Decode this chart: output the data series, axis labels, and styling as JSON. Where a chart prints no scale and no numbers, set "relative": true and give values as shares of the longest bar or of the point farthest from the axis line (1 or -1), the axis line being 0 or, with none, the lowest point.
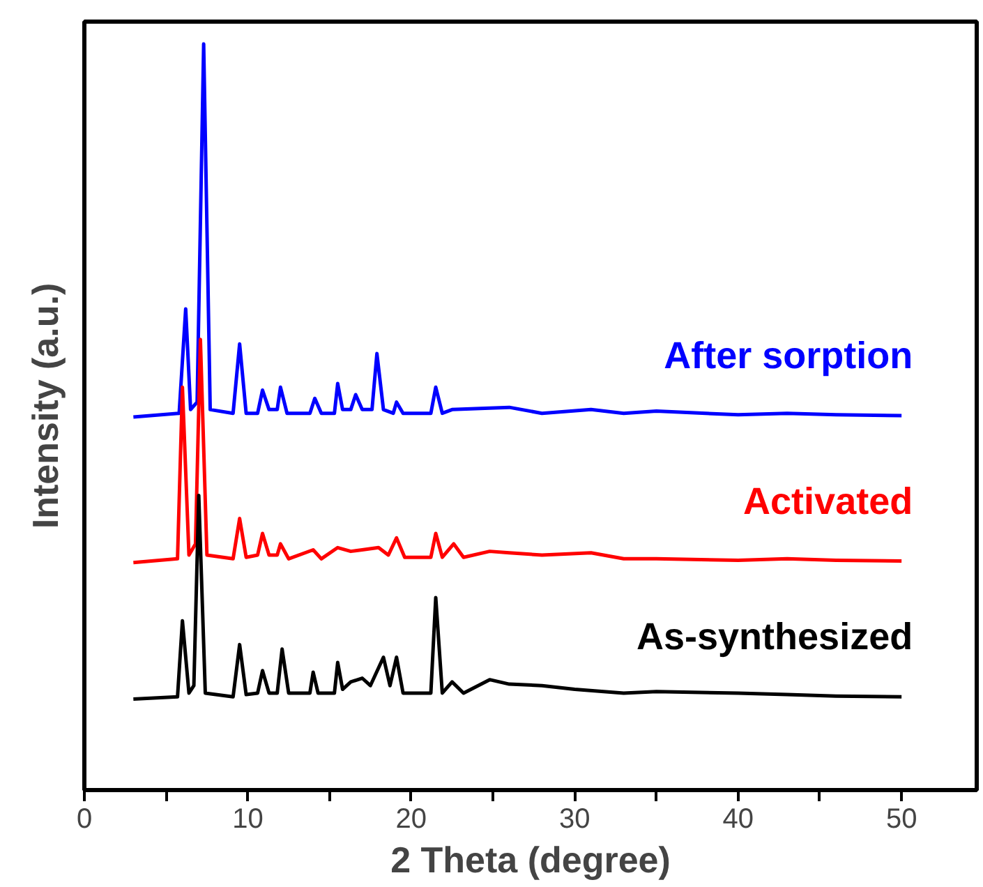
{
  "chart_data": {
    "type": "line",
    "relative": true,
    "xlabel": "2 Theta (degree)",
    "ylabel": "Intensity (a.u.)",
    "xlim": [
      0,
      54.6
    ],
    "xticks": [
      0,
      {
        "value": 5,
        "label": null
      },
      10,
      {
        "value": 15,
        "label": null
      },
      20,
      {
        "value": 25,
        "label": null
      },
      30,
      {
        "value": 35,
        "label": null
      },
      40,
      {
        "value": 45,
        "label": null
      },
      50
    ],
    "grid": false,
    "legend": false,
    "marker": "none",
    "line_style": "solid",
    "series": [
      {
        "name": "After sorption",
        "color": "#0000ff",
        "x": [
          3,
          5.8,
          6.2,
          6.5,
          6.9,
          7.3,
          7.7,
          9.1,
          9.5,
          9.9,
          10.6,
          10.9,
          11.3,
          11.8,
          12.0,
          12.4,
          13.8,
          14.1,
          14.5,
          15.3,
          15.5,
          15.8,
          16.3,
          16.6,
          17.0,
          17.6,
          17.9,
          18.3,
          18.9,
          19.1,
          19.5,
          21.2,
          21.5,
          21.9,
          22.5,
          24.8,
          26.0,
          28,
          31.0,
          33,
          35,
          40,
          43,
          46,
          50
        ],
        "values": [
          0.5,
          0.505,
          0.645,
          0.51,
          0.52,
          1.0,
          0.51,
          0.505,
          0.598,
          0.505,
          0.505,
          0.536,
          0.51,
          0.51,
          0.54,
          0.505,
          0.505,
          0.525,
          0.505,
          0.505,
          0.545,
          0.51,
          0.51,
          0.53,
          0.51,
          0.51,
          0.585,
          0.51,
          0.505,
          0.52,
          0.505,
          0.505,
          0.54,
          0.505,
          0.51,
          0.512,
          0.513,
          0.505,
          0.51,
          0.505,
          0.508,
          0.503,
          0.505,
          0.503,
          0.502
        ]
      },
      {
        "name": "Activated",
        "color": "#ff0000",
        "x": [
          3,
          5.7,
          6.0,
          6.4,
          6.8,
          7.1,
          7.5,
          9.1,
          9.5,
          9.9,
          10.6,
          10.9,
          11.3,
          11.8,
          12.0,
          12.5,
          14.0,
          14.5,
          15.5,
          16.3,
          17.0,
          18.0,
          18.6,
          19.1,
          19.6,
          21.2,
          21.5,
          21.9,
          22.6,
          23.2,
          24.8,
          26.0,
          28,
          31.0,
          33,
          35,
          40,
          43,
          46,
          50
        ],
        "values": [
          0.305,
          0.31,
          0.54,
          0.315,
          0.33,
          0.604,
          0.315,
          0.31,
          0.364,
          0.312,
          0.315,
          0.344,
          0.315,
          0.315,
          0.33,
          0.31,
          0.322,
          0.31,
          0.325,
          0.32,
          0.322,
          0.325,
          0.315,
          0.338,
          0.312,
          0.312,
          0.344,
          0.312,
          0.33,
          0.312,
          0.32,
          0.318,
          0.315,
          0.318,
          0.31,
          0.31,
          0.308,
          0.31,
          0.308,
          0.307
        ]
      },
      {
        "name": "As-synthesized",
        "color": "#000000",
        "x": [
          3,
          5.7,
          6.0,
          6.4,
          6.7,
          7.0,
          7.4,
          9.1,
          9.5,
          9.9,
          10.6,
          10.9,
          11.3,
          11.8,
          12.1,
          12.5,
          13.8,
          14.0,
          14.3,
          15.3,
          15.5,
          15.8,
          16.3,
          17.0,
          17.5,
          18.3,
          18.7,
          19.1,
          19.5,
          21.2,
          21.5,
          21.9,
          22.5,
          23.2,
          24.8,
          26.0,
          28,
          30,
          33,
          35,
          40,
          43,
          46,
          50
        ],
        "values": [
          0.122,
          0.125,
          0.227,
          0.13,
          0.14,
          0.395,
          0.13,
          0.125,
          0.195,
          0.128,
          0.13,
          0.16,
          0.13,
          0.13,
          0.189,
          0.13,
          0.13,
          0.158,
          0.13,
          0.13,
          0.171,
          0.135,
          0.145,
          0.15,
          0.14,
          0.178,
          0.14,
          0.178,
          0.13,
          0.13,
          0.258,
          0.13,
          0.145,
          0.13,
          0.148,
          0.142,
          0.14,
          0.135,
          0.13,
          0.132,
          0.13,
          0.128,
          0.126,
          0.125
        ]
      }
    ]
  }
}
